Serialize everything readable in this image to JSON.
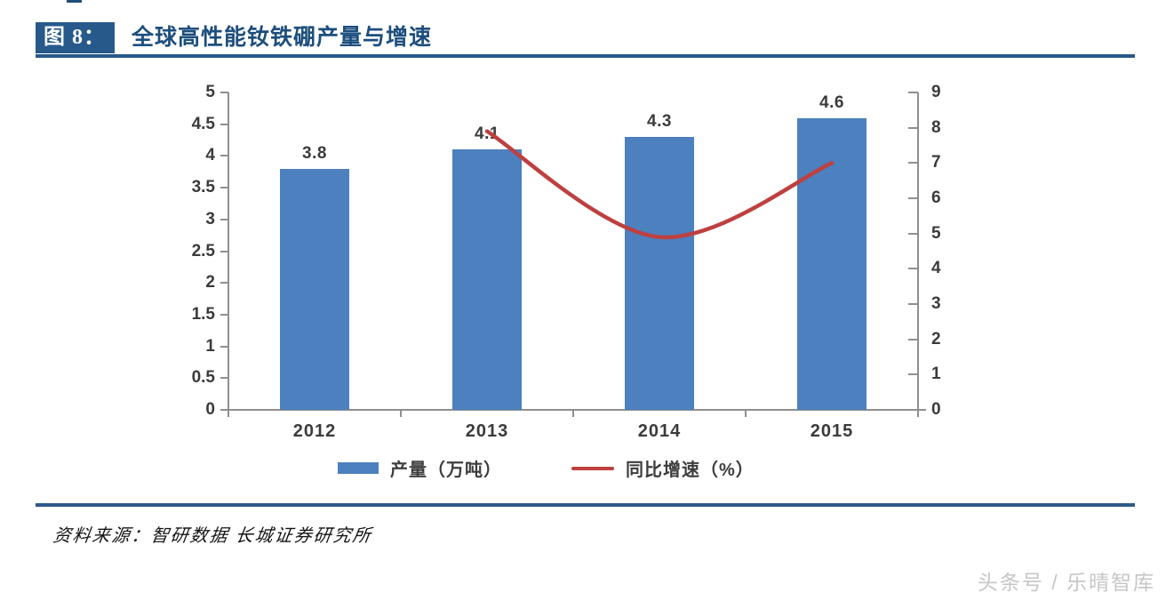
{
  "header": {
    "figure_label": "图 8：",
    "title": "全球高性能钕铁硼产量与增速"
  },
  "chart_data": {
    "type": "bar",
    "title": "全球高性能钕铁硼产量与增速",
    "categories": [
      "2012",
      "2013",
      "2014",
      "2015"
    ],
    "series": [
      {
        "name": "产量（万吨）",
        "type": "bar",
        "axis": "left",
        "values": [
          3.8,
          4.1,
          4.3,
          4.6
        ],
        "data_labels": [
          "3.8",
          "4.1",
          "4.3",
          "4.6"
        ],
        "color": "#4C80BE"
      },
      {
        "name": "同比增速（%）",
        "type": "line",
        "axis": "right",
        "values": [
          null,
          7.9,
          4.9,
          7.0
        ],
        "color": "#BE4040"
      }
    ],
    "left_axis": {
      "min": 0,
      "max": 5,
      "step": 0.5,
      "tick_labels": [
        "5",
        "4.5",
        "4",
        "3.5",
        "3",
        "2.5",
        "2",
        "1.5",
        "1",
        "0.5",
        "0"
      ]
    },
    "right_axis": {
      "min": 0,
      "max": 9,
      "step": 1,
      "tick_labels": [
        "9",
        "8",
        "7",
        "6",
        "5",
        "4",
        "3",
        "2",
        "1",
        "0"
      ]
    },
    "grid": false,
    "legend_position": "bottom"
  },
  "footer": {
    "source": "资料来源：智研数据  长城证券研究所"
  },
  "watermark": {
    "text": "头条号 / 乐晴智库"
  },
  "colors": {
    "header_accent": "#27598b",
    "bar": "#4C80BE",
    "line": "#BE4040",
    "axis": "#8f8f8f"
  }
}
